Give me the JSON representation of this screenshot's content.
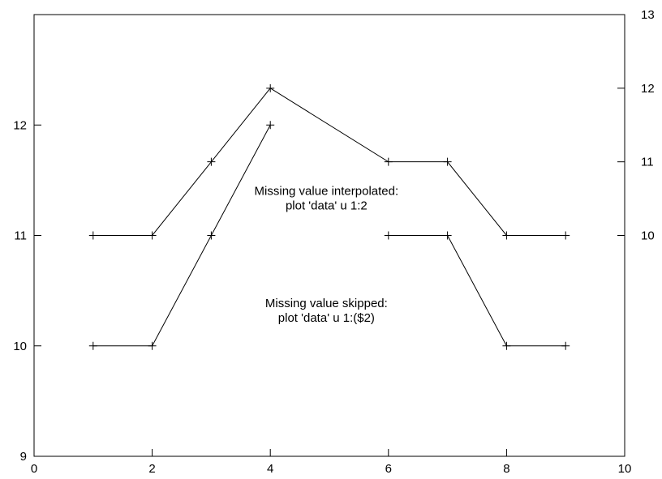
{
  "chart_data": {
    "type": "line",
    "title": "",
    "xlabel": "",
    "ylabel": "",
    "xlim": [
      0,
      10
    ],
    "x_ticks": [
      0,
      2,
      4,
      6,
      8,
      10
    ],
    "grid": false,
    "legend": "none",
    "line_color": "#000000",
    "marker": "+",
    "left_axis": {
      "ylim": [
        9,
        13
      ],
      "ticks": [
        9,
        10,
        11,
        12
      ]
    },
    "right_axis": {
      "ylim": [
        7,
        13
      ],
      "ticks": [
        10,
        11,
        12,
        13
      ]
    },
    "series": [
      {
        "axis": "right",
        "x": [
          1,
          2,
          3,
          4,
          6,
          7,
          8,
          9
        ],
        "y": [
          10,
          10,
          11,
          12,
          11,
          11,
          10,
          10
        ],
        "segments": [
          [
            0,
            7
          ]
        ]
      },
      {
        "axis": "left",
        "x": [
          1,
          2,
          3,
          4,
          6,
          7,
          8,
          9
        ],
        "y": [
          10,
          10,
          11,
          12,
          11,
          11,
          10,
          10
        ],
        "segments": [
          [
            0,
            3
          ],
          [
            4,
            7
          ]
        ]
      }
    ],
    "annotations": [
      {
        "axis": "right",
        "x": 4.95,
        "y": 10.55,
        "lines": [
          "Missing value interpolated:",
          "plot 'data' u 1:2"
        ]
      },
      {
        "axis": "left",
        "x": 4.95,
        "y": 10.35,
        "lines": [
          "Missing value skipped:",
          "plot 'data' u 1:($2)"
        ]
      }
    ]
  }
}
